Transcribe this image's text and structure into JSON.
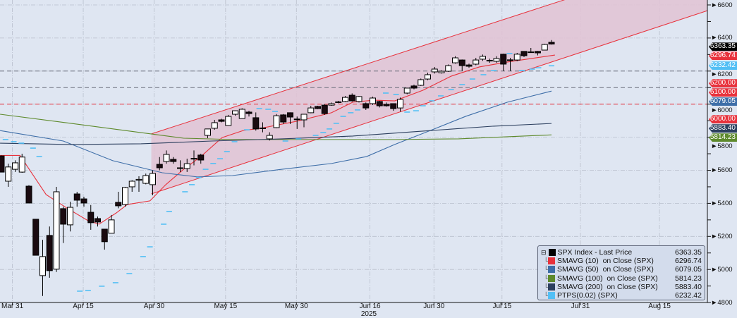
{
  "chart_data": {
    "type": "candlestick",
    "title": "SPX Index - Last Price",
    "xlabel": "2025",
    "ylabel": "",
    "ylim": [
      4800,
      6600
    ],
    "xlim_index": [
      -0.2,
      102.7
    ],
    "grid": true,
    "legend_position": "bottom-right",
    "x_ticks": [
      {
        "label": "Mar 31",
        "index": 1.6
      },
      {
        "label": "Apr 15",
        "index": 11.9
      },
      {
        "label": "Apr 30",
        "index": 22.2
      },
      {
        "label": "May 15",
        "index": 32.6
      },
      {
        "label": "May 30",
        "index": 42.9
      },
      {
        "label": "Jun 16",
        "index": 53.6
      },
      {
        "label": "Jun 30",
        "index": 62.9
      },
      {
        "label": "Jul 15",
        "index": 72.8
      },
      {
        "label": "Jul 31",
        "index": 84.2
      },
      {
        "label": "Aug 15",
        "index": 95.7
      }
    ],
    "y_ticks": [
      "6600",
      "6400",
      "6200",
      "6000",
      "5800",
      "5600",
      "5400",
      "5200",
      "5000",
      "4800"
    ],
    "candles_ohlc": [
      [
        5687,
        5690,
        5589,
        5589
      ],
      [
        5534,
        5640,
        5500,
        5620
      ],
      [
        5606,
        5660,
        5590,
        5645
      ],
      [
        5589,
        5700,
        5585,
        5680
      ],
      [
        5504,
        5510,
        5400,
        5402
      ],
      [
        5304,
        5304,
        5086,
        5086
      ],
      [
        4963,
        5180,
        4840,
        5078
      ],
      [
        5206,
        5260,
        4950,
        4993
      ],
      [
        5002,
        5500,
        4985,
        5470
      ],
      [
        5368,
        5380,
        5160,
        5274
      ],
      [
        5270,
        5410,
        5230,
        5376
      ],
      [
        5457,
        5470,
        5380,
        5419
      ],
      [
        5427,
        5440,
        5380,
        5402
      ],
      [
        5346,
        5390,
        5240,
        5283
      ],
      [
        5308,
        5320,
        5260,
        5287
      ],
      [
        5244,
        5244,
        5120,
        5168
      ],
      [
        5219,
        5330,
        5219,
        5300
      ],
      [
        5406,
        5470,
        5370,
        5385
      ],
      [
        5393,
        5500,
        5380,
        5496
      ],
      [
        5500,
        5540,
        5470,
        5534
      ],
      [
        5540,
        5564,
        5470,
        5545
      ],
      [
        5521,
        5580,
        5515,
        5568
      ],
      [
        5513,
        5600,
        5449,
        5581
      ],
      [
        5636,
        5680,
        5600,
        5615
      ],
      [
        5653,
        5720,
        5640,
        5696
      ],
      [
        5666,
        5680,
        5640,
        5653
      ],
      [
        5615,
        5660,
        5590,
        5613
      ],
      [
        5611,
        5670,
        5590,
        5640
      ],
      [
        5670,
        5720,
        5630,
        5672
      ],
      [
        5692,
        5700,
        5640,
        5662
      ],
      [
        5811,
        5850,
        5794,
        5850
      ],
      [
        5854,
        5905,
        5845,
        5888
      ],
      [
        5905,
        5912,
        5890,
        5896
      ],
      [
        5871,
        5935,
        5870,
        5926
      ],
      [
        5939,
        5962,
        5930,
        5960
      ],
      [
        5913,
        5975,
        5912,
        5969
      ],
      [
        5952,
        5960,
        5925,
        5943
      ],
      [
        5918,
        5950,
        5840,
        5850
      ],
      [
        5854,
        5890,
        5830,
        5856
      ],
      [
        5790,
        5830,
        5780,
        5811
      ],
      [
        5858,
        5940,
        5855,
        5930
      ],
      [
        5935,
        5940,
        5880,
        5892
      ],
      [
        5948,
        5950,
        5880,
        5922
      ],
      [
        5910,
        5925,
        5850,
        5908
      ],
      [
        5905,
        5939,
        5860,
        5939
      ],
      [
        5948,
        5990,
        5945,
        5977
      ],
      [
        5986,
        5990,
        5970,
        5973
      ],
      [
        5994,
        6000,
        5935,
        5943
      ],
      [
        5994,
        6010,
        5990,
        6003
      ],
      [
        6012,
        6020,
        6005,
        6014
      ],
      [
        6016,
        6050,
        6012,
        6041
      ],
      [
        6054,
        6065,
        6015,
        6020
      ],
      [
        6016,
        6050,
        6010,
        6046
      ],
      [
        6003,
        6010,
        5965,
        5977
      ],
      [
        6003,
        6045,
        5995,
        6037
      ],
      [
        6016,
        6020,
        5980,
        5990
      ],
      [
        5999,
        6010,
        5985,
        5990
      ],
      [
        6003,
        6005,
        5960,
        5973
      ],
      [
        5977,
        6040,
        5955,
        6029
      ],
      [
        6067,
        6097,
        6060,
        6097
      ],
      [
        6110,
        6118,
        6090,
        6097
      ],
      [
        6114,
        6155,
        6110,
        6148
      ],
      [
        6152,
        6190,
        6145,
        6178
      ],
      [
        6195,
        6225,
        6185,
        6212
      ],
      [
        6190,
        6205,
        6185,
        6199
      ],
      [
        6199,
        6240,
        6195,
        6233
      ],
      [
        6250,
        6290,
        6245,
        6280
      ],
      [
        6267,
        6270,
        6200,
        6233
      ],
      [
        6237,
        6245,
        6220,
        6229
      ],
      [
        6242,
        6280,
        6235,
        6267
      ],
      [
        6272,
        6300,
        6262,
        6289
      ],
      [
        6263,
        6275,
        6250,
        6265
      ],
      [
        6259,
        6290,
        6250,
        6276
      ],
      [
        6302,
        6305,
        6200,
        6242
      ],
      [
        6267,
        6280,
        6200,
        6268
      ],
      [
        6267,
        6310,
        6260,
        6302
      ],
      [
        6319,
        6320,
        6285,
        6293
      ],
      [
        6315,
        6340,
        6312,
        6316
      ],
      [
        6319,
        6322,
        6295,
        6310
      ],
      [
        6327,
        6365,
        6325,
        6361
      ],
      [
        6374,
        6388,
        6360,
        6363.35
      ]
    ],
    "series": [
      {
        "name": "SMAVG (10)  on Close (SPX)",
        "last": "6296.74",
        "color": "#e8323c",
        "type": "line",
        "points": [
          [
            -0.2,
            5690
          ],
          [
            2.7,
            5690
          ],
          [
            6.5,
            5453
          ],
          [
            9.5,
            5372
          ],
          [
            12.6,
            5295
          ],
          [
            14.2,
            5274
          ],
          [
            16.7,
            5342
          ],
          [
            18.3,
            5393
          ],
          [
            21.6,
            5415
          ],
          [
            23.9,
            5513
          ],
          [
            26.5,
            5606
          ],
          [
            29,
            5683
          ],
          [
            32.1,
            5798
          ],
          [
            35.2,
            5841
          ],
          [
            37.7,
            5854
          ],
          [
            42.9,
            5896
          ],
          [
            48,
            5948
          ],
          [
            51.1,
            6012
          ],
          [
            54.2,
            6024
          ],
          [
            57.2,
            6020
          ],
          [
            61.3,
            6084
          ],
          [
            65.4,
            6169
          ],
          [
            69.5,
            6225
          ],
          [
            73.6,
            6255
          ],
          [
            77.7,
            6280
          ],
          [
            80.5,
            6297
          ]
        ]
      },
      {
        "name": "SMAVG (50)  on Close (SPX)",
        "last": "6079.05",
        "color": "#3e6ea8",
        "type": "line",
        "points": [
          [
            -0.2,
            5840
          ],
          [
            9,
            5777
          ],
          [
            16.2,
            5658
          ],
          [
            23.4,
            5585
          ],
          [
            28.5,
            5560
          ],
          [
            33.6,
            5568
          ],
          [
            40.8,
            5606
          ],
          [
            48,
            5641
          ],
          [
            53.1,
            5683
          ],
          [
            57.2,
            5756
          ],
          [
            62.4,
            5841
          ],
          [
            67.5,
            5926
          ],
          [
            73.6,
            6012
          ],
          [
            80,
            6079
          ]
        ]
      },
      {
        "name": "SMAVG (100)  on Close (SPX)",
        "last": "5814.23",
        "color": "#5e8a2c",
        "type": "line",
        "points": [
          [
            -0.2,
            5939
          ],
          [
            10.1,
            5884
          ],
          [
            20.3,
            5828
          ],
          [
            26.5,
            5794
          ],
          [
            33.6,
            5786
          ],
          [
            46,
            5786
          ],
          [
            57.2,
            5786
          ],
          [
            66.5,
            5790
          ],
          [
            73.6,
            5803
          ],
          [
            80,
            5814
          ]
        ]
      },
      {
        "name": "SMAVG (200)  on Close (SPX)",
        "last": "5883.40",
        "color": "#2c3f5e",
        "type": "line",
        "points": [
          [
            -0.2,
            5764
          ],
          [
            10.1,
            5756
          ],
          [
            20.3,
            5760
          ],
          [
            30.6,
            5777
          ],
          [
            40.8,
            5790
          ],
          [
            51.1,
            5807
          ],
          [
            61.3,
            5837
          ],
          [
            71.6,
            5867
          ],
          [
            80,
            5883
          ]
        ]
      },
      {
        "name": "PTPS(0.02) (SPX)",
        "last": "6232.42",
        "color": "#52bff5",
        "type": "dashes",
        "points": [
          [
            0.6,
            5786
          ],
          [
            1.8,
            5773
          ],
          [
            2.9,
            5764
          ],
          [
            4.6,
            5734
          ],
          [
            5.5,
            5683
          ],
          [
            11.4,
            4869
          ],
          [
            12.6,
            4873
          ],
          [
            14.6,
            4899
          ],
          [
            16.6,
            4920
          ],
          [
            18.6,
            4975
          ],
          [
            20.6,
            5078
          ],
          [
            21.6,
            5137
          ],
          [
            23.6,
            5274
          ],
          [
            24.4,
            5351
          ],
          [
            26.7,
            5470
          ],
          [
            27.7,
            5513
          ],
          [
            28.7,
            5556
          ],
          [
            29.7,
            5606
          ],
          [
            30.8,
            5641
          ],
          [
            31.8,
            5670
          ],
          [
            32.8,
            5713
          ],
          [
            33.9,
            5773
          ],
          [
            35.7,
            5845
          ],
          [
            37.5,
            5973
          ],
          [
            38.8,
            5969
          ],
          [
            39.8,
            5956
          ],
          [
            41.3,
            5777
          ],
          [
            43.2,
            5790
          ],
          [
            45.7,
            5811
          ],
          [
            46.8,
            5828
          ],
          [
            47.7,
            5850
          ],
          [
            48.7,
            5884
          ],
          [
            49.7,
            5926
          ],
          [
            50.8,
            5948
          ],
          [
            51.8,
            5965
          ],
          [
            55.9,
            6067
          ],
          [
            57.4,
            6058
          ],
          [
            59,
            5952
          ],
          [
            60.3,
            5960
          ],
          [
            61.3,
            5990
          ],
          [
            62.6,
            6020
          ],
          [
            63.9,
            6050
          ],
          [
            65.4,
            6088
          ],
          [
            67,
            6118
          ],
          [
            68.5,
            6152
          ],
          [
            70.1,
            6178
          ],
          [
            71.6,
            6203
          ],
          [
            73.9,
            6306
          ],
          [
            75.7,
            6203
          ],
          [
            77.2,
            6212
          ],
          [
            78.1,
            6220
          ],
          [
            80,
            6232
          ]
        ]
      }
    ],
    "channel": {
      "color": "#e8323c",
      "upper": [
        [
          21.8,
          5820
        ],
        [
          81.8,
          6630
        ]
      ],
      "lower": [
        [
          21.8,
          5457
        ],
        [
          102.7,
          6566
        ]
      ]
    },
    "levels": [
      {
        "value": 6200,
        "label": "6200.00",
        "style": "grey-dashed"
      },
      {
        "value": 6100,
        "label": "6100.00",
        "style": "grey-dashed"
      },
      {
        "value": 6000,
        "label": "6000.00",
        "style": "red-dashed"
      }
    ],
    "legend": {
      "title_label": "SPX Index - Last Price",
      "title_value": "6363.35",
      "rows": [
        {
          "label": "SMAVG (10)  on Close (SPX)",
          "value": "6296.74",
          "color": "#e8323c"
        },
        {
          "label": "SMAVG (50)  on Close (SPX)",
          "value": "6079.05",
          "color": "#3e6ea8"
        },
        {
          "label": "SMAVG (100)  on Close (SPX)",
          "value": "5814.23",
          "color": "#5e8a2c"
        },
        {
          "label": "SMAVG (200)  on Close (SPX)",
          "value": "5883.40",
          "color": "#2c3f5e"
        },
        {
          "label": "PTPS(0.02) (SPX)",
          "value": "6232.42",
          "color": "#52bff5"
        }
      ]
    },
    "price_tags": [
      {
        "label": "6363.35",
        "value": 6363.35,
        "color": "#000000"
      },
      {
        "label": "6296.74",
        "value": 6296.74,
        "color": "#e8323c"
      },
      {
        "label": "6232.42",
        "value": 6232.42,
        "color": "#52bff5"
      },
      {
        "label": "6200.00",
        "value": 6200,
        "color": "#e8323c"
      },
      {
        "label": "6079.05",
        "value": 6079.05,
        "color": "#3e6ea8"
      },
      {
        "label": "6100.00",
        "value": 6100,
        "color": "#e8323c"
      },
      {
        "label": "6000.00",
        "value": 6000,
        "color": "#e8323c"
      },
      {
        "label": "5883.40",
        "value": 5883.4,
        "color": "#2c3f5e"
      },
      {
        "label": "5814.23",
        "value": 5814.23,
        "color": "#5e8a2c"
      }
    ]
  }
}
